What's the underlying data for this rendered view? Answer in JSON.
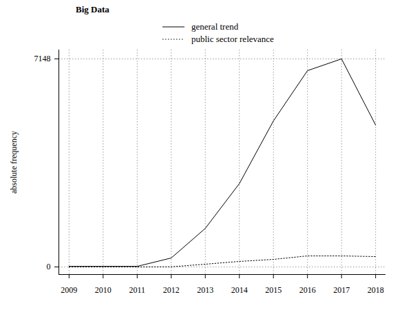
{
  "chart_data": {
    "type": "line",
    "title": "Big Data",
    "y_label": "absolute frequency",
    "x": [
      2009,
      2010,
      2011,
      2012,
      2013,
      2014,
      2015,
      2016,
      2017,
      2018
    ],
    "series": [
      {
        "name": "general trend",
        "color": "#000000",
        "line_style": "solid",
        "values": [
          20,
          20,
          20,
          308,
          1325,
          2864,
          5018,
          6745,
          7148,
          4876
        ]
      },
      {
        "name": "public sector relevance",
        "color": "#000000",
        "line_style": "dotted",
        "values": [
          0,
          0,
          0,
          5,
          95,
          190,
          260,
          380,
          380,
          355
        ]
      }
    ],
    "xlim": [
      2008.7,
      2018.3
    ],
    "xticks": [
      2009,
      2010,
      2011,
      2012,
      2013,
      2014,
      2015,
      2016,
      2017,
      2018
    ],
    "ylim": [
      -260,
      7456
    ],
    "yticks": [
      0,
      7148
    ],
    "grid": true,
    "legend": "top"
  }
}
